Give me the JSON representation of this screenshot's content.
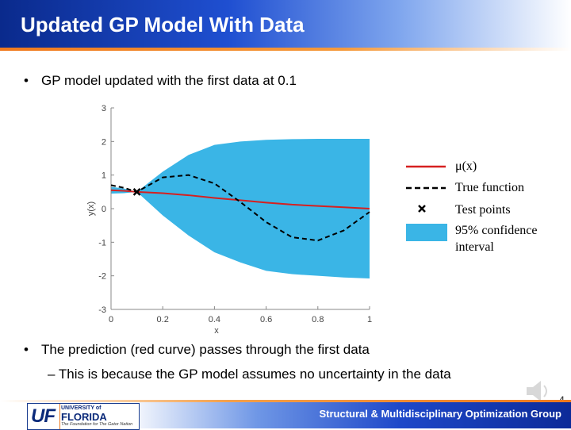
{
  "title": "Updated GP Model With Data",
  "bullets": {
    "first": "GP model updated with the first data at 0.1",
    "second": "The prediction (red curve) passes through the first data",
    "sub_marker": "–",
    "sub": "This is because the GP model assumes no uncertainty in the data",
    "marker": "•"
  },
  "chart_data": {
    "type": "line",
    "xlabel": "x",
    "ylabel": "y(x)",
    "xlim": [
      0,
      1
    ],
    "ylim": [
      -3,
      3
    ],
    "x_ticks": [
      "0",
      "0.2",
      "0.4",
      "0.6",
      "0.8",
      "1"
    ],
    "y_ticks": [
      "3",
      "2",
      "1",
      "0",
      "-1",
      "-2",
      "-3"
    ],
    "x": [
      0,
      0.05,
      0.1,
      0.2,
      0.3,
      0.4,
      0.5,
      0.6,
      0.7,
      0.8,
      0.9,
      1.0
    ],
    "series": [
      {
        "name": "μ(x)",
        "color": "#d62020",
        "values": [
          0.55,
          0.53,
          0.5,
          0.46,
          0.4,
          0.32,
          0.25,
          0.18,
          0.12,
          0.08,
          0.04,
          0.0
        ]
      },
      {
        "name": "True function",
        "color": "#000000",
        "dash": true,
        "values": [
          0.7,
          0.62,
          0.5,
          0.93,
          1.0,
          0.75,
          0.2,
          -0.4,
          -0.85,
          -0.95,
          -0.65,
          -0.1
        ]
      },
      {
        "name": "Test points",
        "type": "scatter",
        "color": "#000000",
        "points": [
          [
            0.1,
            0.5
          ]
        ]
      },
      {
        "name": "95% confidence interval",
        "type": "band",
        "color": "#3ab5e6",
        "upper": [
          0.65,
          0.6,
          0.5,
          1.1,
          1.6,
          1.9,
          2.0,
          2.05,
          2.07,
          2.08,
          2.08,
          2.08
        ],
        "lower": [
          0.45,
          0.46,
          0.5,
          -0.2,
          -0.8,
          -1.3,
          -1.6,
          -1.85,
          -1.95,
          -2.0,
          -2.05,
          -2.08
        ]
      }
    ],
    "legend": [
      {
        "key": "mu",
        "label": "μ(x)"
      },
      {
        "key": "true",
        "label": "True function"
      },
      {
        "key": "test",
        "label": "Test points"
      },
      {
        "key": "ci",
        "label": "95% confidence interval"
      }
    ],
    "legend_position": "right"
  },
  "footer": {
    "org": "Structural & Multidisciplinary Optimization Group",
    "page": "4",
    "logo_uf": "UF",
    "logo_univ": "UNIVERSITY of",
    "logo_florida": "FLORIDA",
    "logo_tagline": "The Foundation for The Gator Nation"
  },
  "colors": {
    "title_blue": "#0a2a8c",
    "accent_orange": "#f07a1e",
    "band_blue": "#3ab5e6",
    "mean_red": "#d62020"
  }
}
